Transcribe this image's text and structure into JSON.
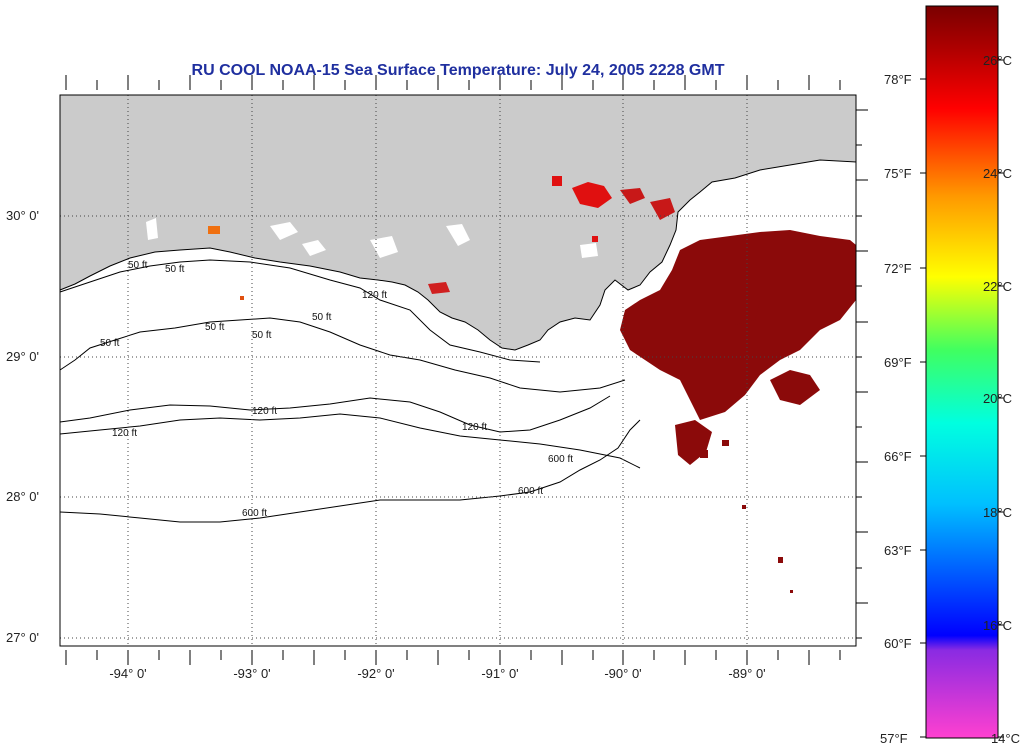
{
  "title": "RU COOL  NOAA-15  Sea Surface Temperature:  July 24, 2005 2228 GMT",
  "longitude_labels": [
    "-94° 0'",
    "-93° 0'",
    "-92° 0'",
    "-91° 0'",
    "-90° 0'",
    "-89° 0'"
  ],
  "latitude_labels": [
    "30° 0'",
    "29° 0'",
    "28° 0'",
    "27° 0'"
  ],
  "contour_labels": [
    "50 ft",
    "50 ft",
    "50 ft",
    "50 ft",
    "50 ft",
    "50 ft",
    "120 ft",
    "120 ft",
    "120 ft",
    "120 ft",
    "600 ft",
    "600 ft",
    "600 ft"
  ],
  "colorbar": {
    "fahrenheit": [
      "78°F",
      "75°F",
      "72°F",
      "69°F",
      "66°F",
      "63°F",
      "60°F",
      "57°F"
    ],
    "celsius": [
      "26°C",
      "24°C",
      "22°C",
      "20°C",
      "18°C",
      "16°C",
      "14°C"
    ]
  },
  "colors": {
    "land": "#cbcbcb",
    "ocean": "#ffffff",
    "sst_warm": "#8b0a0a",
    "title": "#1f2f9f"
  }
}
